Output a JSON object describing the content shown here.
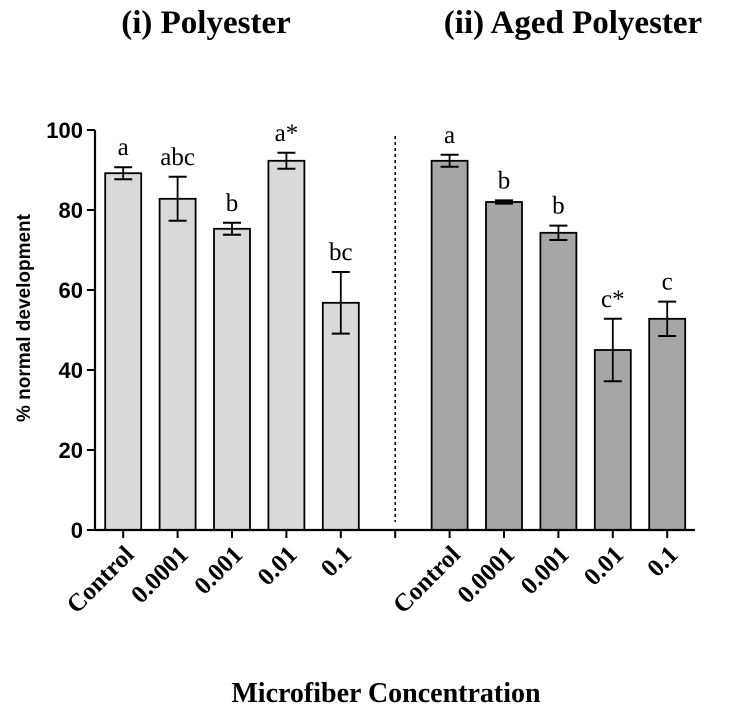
{
  "chart_data": {
    "type": "bar",
    "ylabel": "% normal development",
    "xlabel": "Microfiber Concentration",
    "ylim": [
      0,
      100
    ],
    "yticks": [
      0,
      20,
      40,
      60,
      80,
      100
    ],
    "grid": false,
    "panels": [
      {
        "title": "(i) Polyester",
        "color": "#d9d9d9",
        "categories": [
          "Control",
          "0.0001",
          "0.001",
          "0.01",
          "0.1"
        ],
        "values": [
          89.2,
          82.8,
          75.3,
          92.3,
          56.8
        ],
        "errors": [
          1.5,
          5.5,
          1.5,
          2.0,
          7.7
        ],
        "labels": [
          "a",
          "abc",
          "b",
          "a*",
          "bc"
        ]
      },
      {
        "title": "(ii) Aged Polyester",
        "color": "#a6a6a6",
        "categories": [
          "Control",
          "0.0001",
          "0.001",
          "0.01",
          "0.1"
        ],
        "values": [
          92.3,
          82.0,
          74.3,
          45.0,
          52.8
        ],
        "errors": [
          1.5,
          0.4,
          1.8,
          7.8,
          4.3
        ],
        "labels": [
          "a",
          "b",
          "b",
          "c*",
          "c"
        ]
      }
    ]
  }
}
